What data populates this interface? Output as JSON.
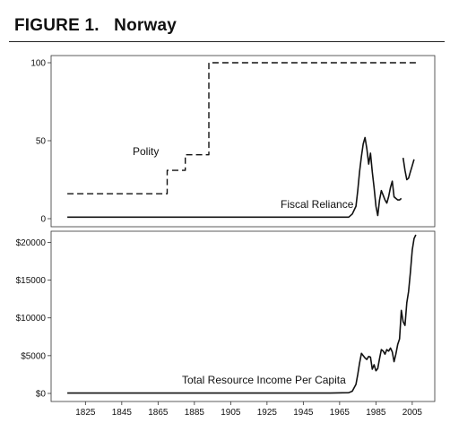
{
  "figure": {
    "label": "FIGURE 1.",
    "country": "Norway"
  },
  "chart_data": [
    {
      "type": "line",
      "xlim": [
        1812,
        2010
      ],
      "ylim": [
        0,
        100
      ],
      "yticks": [
        0,
        50,
        100
      ],
      "ytick_labels": [
        "0",
        "50",
        "100"
      ],
      "grid": false,
      "series": [
        {
          "label": "Polity",
          "style": "dashed",
          "x": [
            1815,
            1870,
            1870,
            1880,
            1880,
            1893,
            1893,
            2007
          ],
          "y": [
            16,
            16,
            31,
            31,
            41,
            41,
            100,
            100
          ]
        },
        {
          "label": "Fiscal Reliance",
          "style": "solid",
          "x": [
            1815,
            1955,
            1970,
            1972,
            1974,
            1975,
            1976,
            1977,
            1978,
            1979,
            1980,
            1981,
            1982,
            1983,
            1984,
            1985,
            1986,
            1987,
            1988,
            1989,
            1990,
            1991,
            1992,
            1993,
            1994,
            1995,
            1996,
            1997,
            1998,
            1999
          ],
          "y": [
            1,
            1,
            1,
            3,
            8,
            18,
            30,
            40,
            48,
            52,
            45,
            35,
            42,
            30,
            20,
            8,
            2,
            12,
            18,
            15,
            12,
            10,
            14,
            20,
            24,
            14,
            13,
            12,
            12,
            13
          ]
        },
        {
          "style": "solid",
          "x": [
            2000,
            2001,
            2002,
            2003,
            2004,
            2005,
            2006
          ],
          "y": [
            39,
            31,
            25,
            26,
            30,
            34,
            38
          ]
        }
      ]
    },
    {
      "type": "line",
      "xlim": [
        1812,
        2010
      ],
      "ylim": [
        0,
        21000
      ],
      "yticks": [
        0,
        5000,
        10000,
        15000,
        20000
      ],
      "ytick_labels": [
        "$0",
        "$5000",
        "$10000",
        "$15000",
        "$20000"
      ],
      "xticks": [
        1825,
        1845,
        1865,
        1885,
        1905,
        1925,
        1945,
        1965,
        1985,
        2005
      ],
      "xtick_labels": [
        "1825",
        "1845",
        "1865",
        "1885",
        "1905",
        "1925",
        "1945",
        "1965",
        "1985",
        "2005"
      ],
      "grid": false,
      "series": [
        {
          "label": "Total Resource Income Per Capita",
          "style": "solid",
          "x": [
            1815,
            1960,
            1970,
            1972,
            1974,
            1975,
            1976,
            1977,
            1978,
            1979,
            1980,
            1981,
            1982,
            1983,
            1984,
            1985,
            1986,
            1987,
            1988,
            1989,
            1990,
            1991,
            1992,
            1993,
            1994,
            1995,
            1996,
            1997,
            1998,
            1999,
            2000,
            2001,
            2002,
            2003,
            2004,
            2005,
            2006,
            2007
          ],
          "y": [
            50,
            50,
            100,
            300,
            1200,
            2500,
            4000,
            5300,
            5000,
            4700,
            4500,
            4900,
            4800,
            3200,
            3800,
            3000,
            3300,
            4600,
            5800,
            5600,
            5200,
            5800,
            5600,
            6000,
            5500,
            4200,
            5200,
            6500,
            7200,
            11000,
            9500,
            9000,
            12000,
            13500,
            16000,
            19000,
            20500,
            21000
          ]
        }
      ]
    }
  ]
}
